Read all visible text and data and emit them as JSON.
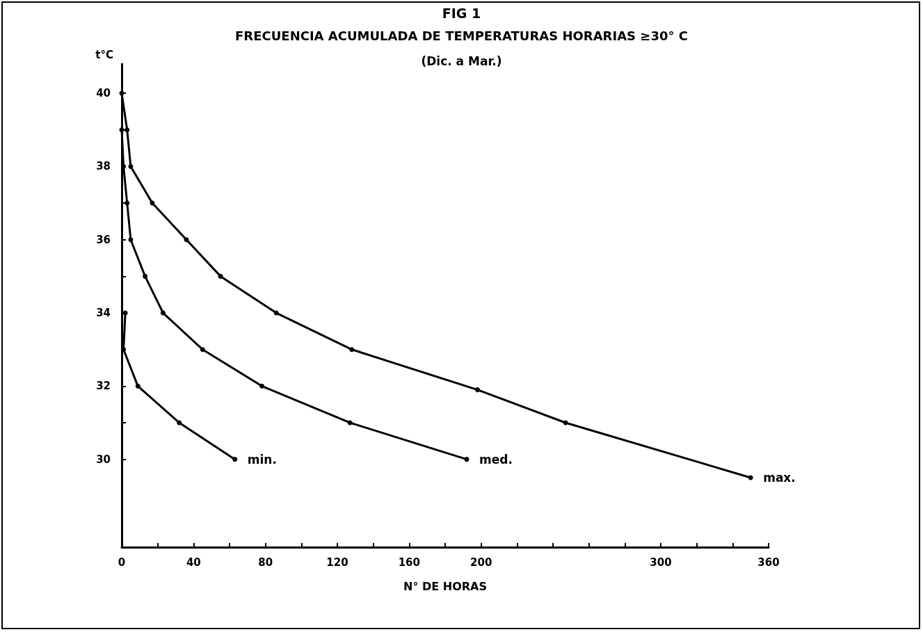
{
  "chart_data": {
    "type": "line",
    "title": "FIG 1",
    "subtitle": "FRECUENCIA ACUMULADA DE TEMPERATURAS HORARIAS ≥30° C",
    "annotations": [
      "(Dic. a Mar.)"
    ],
    "xlabel": "N° DE HORAS",
    "ylabel": "t°C",
    "xlim": [
      0,
      360
    ],
    "ylim": [
      27.6,
      40.8
    ],
    "xticks": [
      0,
      {
        "value": 20,
        "label": null
      },
      40,
      {
        "value": 60,
        "label": null
      },
      80,
      {
        "value": 100,
        "label": null
      },
      120,
      {
        "value": 140,
        "label": null
      },
      160,
      {
        "value": 180,
        "label": null
      },
      200,
      {
        "value": 220,
        "label": null
      },
      {
        "value": 240,
        "label": null
      },
      {
        "value": 260,
        "label": null
      },
      {
        "value": 280,
        "label": null
      },
      300,
      {
        "value": 320,
        "label": null
      },
      {
        "value": 340,
        "label": null
      },
      360
    ],
    "yticks": [
      30,
      {
        "value": 31,
        "label": null
      },
      32,
      {
        "value": 33,
        "label": null
      },
      34,
      {
        "value": 35,
        "label": null
      },
      36,
      {
        "value": 37,
        "label": null
      },
      38,
      {
        "value": 39,
        "label": null
      },
      40
    ],
    "grid": false,
    "legend": false,
    "marker": "circle",
    "line_style": "solid",
    "series": [
      {
        "name": "min.",
        "color": "#000000",
        "x": [
          2,
          1,
          9,
          32,
          63
        ],
        "values": [
          34,
          33,
          32,
          31,
          30
        ]
      },
      {
        "name": "med.",
        "color": "#000000",
        "x": [
          0,
          1,
          3,
          5,
          13,
          23,
          45,
          78,
          127,
          192
        ],
        "values": [
          39,
          38,
          37,
          36,
          35,
          34,
          33,
          32,
          31,
          30
        ]
      },
      {
        "name": "max.",
        "color": "#000000",
        "x": [
          0,
          3,
          5,
          17,
          36,
          55,
          86,
          128,
          198,
          247,
          350
        ],
        "values": [
          40,
          39,
          38,
          37,
          36,
          35,
          34,
          33,
          31.9,
          31,
          29.5
        ]
      }
    ]
  }
}
